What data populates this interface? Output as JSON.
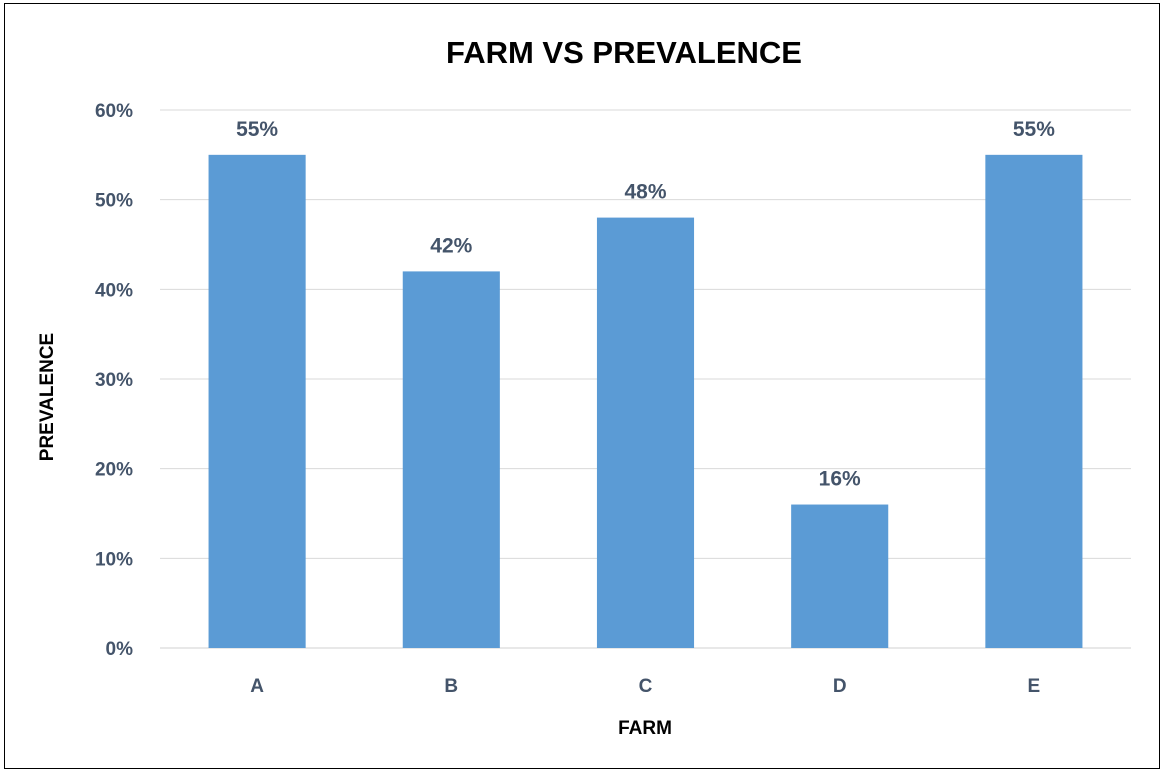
{
  "chart_data": {
    "type": "bar",
    "title": "FARM VS PREVALENCE",
    "xlabel": "FARM",
    "ylabel": "PREVALENCE",
    "categories": [
      "A",
      "B",
      "C",
      "D",
      "E"
    ],
    "values": [
      55,
      42,
      48,
      16,
      55
    ],
    "data_labels": [
      "55%",
      "42%",
      "48%",
      "16%",
      "55%"
    ],
    "y_ticks": [
      0,
      10,
      20,
      30,
      40,
      50,
      60
    ],
    "y_tick_labels": [
      "0%",
      "10%",
      "20%",
      "30%",
      "40%",
      "50%",
      "60%"
    ],
    "ylim": [
      0,
      60
    ],
    "grid": true,
    "legend": "none",
    "bar_color": "#5b9bd5",
    "label_color": "#44546a"
  }
}
